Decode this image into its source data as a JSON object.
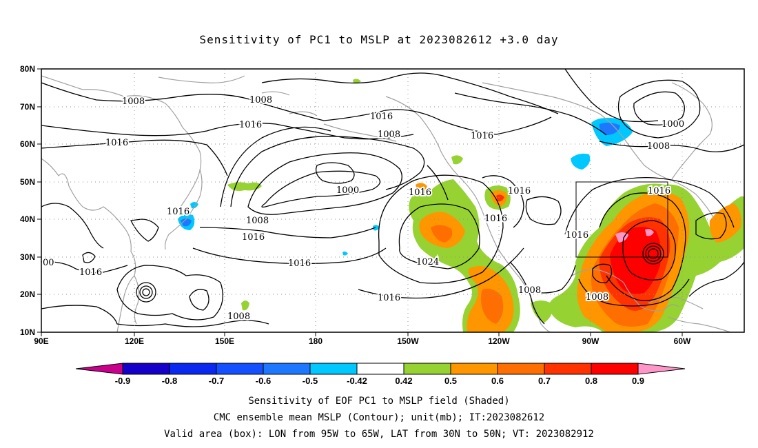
{
  "title": "Sensitivity of PC1 to MSLP at 2023082612 +3.0 day",
  "map": {
    "lon_labels": [
      "90E",
      "120E",
      "150E",
      "180",
      "150W",
      "120W",
      "90W",
      "60W"
    ],
    "lat_labels": [
      "80N",
      "70N",
      "60N",
      "50N",
      "40N",
      "30N",
      "20N",
      "10N"
    ],
    "contour_labels": [
      "1008",
      "1008",
      "1016",
      "1016",
      "1016",
      "1008",
      "1000",
      "1016",
      "1016",
      "1000",
      "1008",
      "1016",
      "1016",
      "1016",
      "1016",
      "1008",
      "1016",
      "1016",
      "1024",
      "1016",
      "1016",
      "1008",
      "1008",
      "1016",
      "1008",
      "1008",
      "00"
    ],
    "valid_box": {
      "lon_from": "95W",
      "lon_to": "65W",
      "lat_from": "30N",
      "lat_to": "50N"
    }
  },
  "colorbar": {
    "labels": [
      "-0.9",
      "-0.8",
      "-0.7",
      "-0.6",
      "-0.5",
      "-0.42",
      "0.42",
      "0.5",
      "0.6",
      "0.7",
      "0.8",
      "0.9"
    ],
    "colors": [
      "#c8008c",
      "#1400c8",
      "#0a28f0",
      "#1450ff",
      "#1e78ff",
      "#00c8ff",
      "#ffffff",
      "#96d232",
      "#ff9600",
      "#ff6e00",
      "#ff3200",
      "#ff0000",
      "#ff96c8"
    ]
  },
  "captions": {
    "line1": "Sensitivity of EOF PC1 to MSLP field (Shaded)",
    "line2": "CMC ensemble mean MSLP (Contour); unit(mb); IT:2023082612",
    "line3": "Valid area (box): LON from 95W to 65W, LAT from 30N to 50N; VT: 2023082912"
  }
}
